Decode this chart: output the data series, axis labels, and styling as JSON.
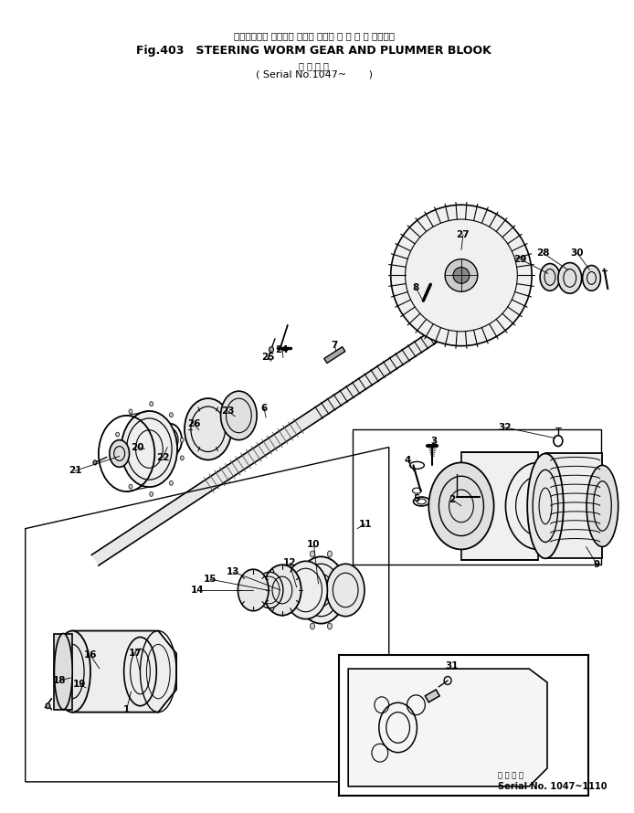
{
  "title_jp": "ステアリング ウオーム ギヤー および プ ラ ン マ ブロック",
  "title_en": "Fig.403   STEERING WORM GEAR AND PLUMMER BLOOK",
  "subtitle_jp": "適 用 号 機",
  "subtitle_en": "( Serial No.1047~       )",
  "serial_inset_jp": "適 用 号 機",
  "serial_inset_en": "Serial No. 1047~1110",
  "bg_color": "#ffffff",
  "line_color": "#000000",
  "figsize": [
    6.94,
    8.9
  ],
  "dpi": 100
}
